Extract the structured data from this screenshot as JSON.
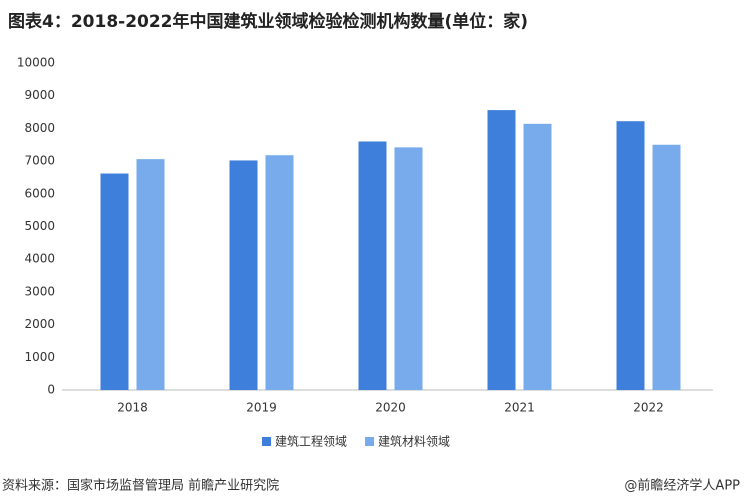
{
  "chart_data": {
    "type": "bar",
    "title": "图表4：2018-2022年中国建筑业领域检验检测机构数量(单位：家)",
    "categories": [
      "2018",
      "2019",
      "2020",
      "2021",
      "2022"
    ],
    "series": [
      {
        "name": "建筑工程领域",
        "color": "#3f7fdc",
        "values": [
          6620,
          7020,
          7600,
          8560,
          8220
        ]
      },
      {
        "name": "建筑材料领域",
        "color": "#78abec",
        "values": [
          7060,
          7180,
          7420,
          8140,
          7500
        ]
      }
    ],
    "ylim": [
      0,
      10000
    ],
    "yticks": [
      0,
      1000,
      2000,
      3000,
      4000,
      5000,
      6000,
      7000,
      8000,
      9000,
      10000
    ],
    "grid": false,
    "legend": "bottom",
    "source": "资料来源：国家市场监督管理局 前瞻产业研究院",
    "credit": "@前瞻经济学人APP"
  }
}
